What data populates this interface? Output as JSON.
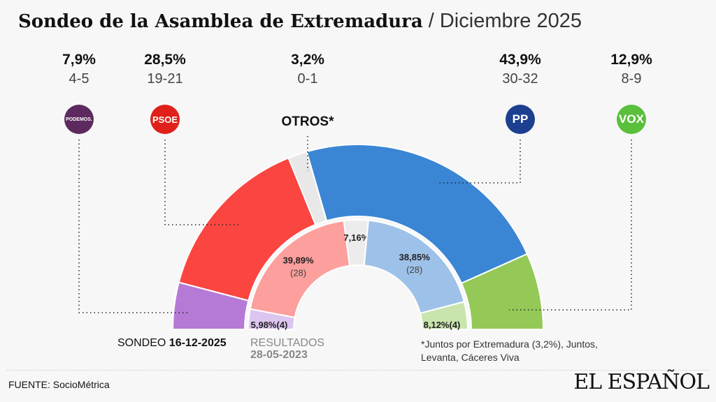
{
  "title": {
    "main": "Sondeo de la Asamblea de Extremadura",
    "separator": " / ",
    "date": "Diciembre 2025"
  },
  "chart_data": {
    "type": "pie",
    "subtype": "semicircle-donut",
    "series": [
      {
        "name": "SONDEO 16-12-2025",
        "ring": "outer",
        "slices": [
          {
            "party": "PODEMOS",
            "value": 7.9,
            "seats": "4-5",
            "color": "#b57ad6"
          },
          {
            "party": "PSOE",
            "value": 28.5,
            "seats": "19-21",
            "color": "#fb4541"
          },
          {
            "party": "OTROS*",
            "value": 3.2,
            "seats": "0-1",
            "color": "#e8e8e8"
          },
          {
            "party": "PP",
            "value": 43.9,
            "seats": "30-32",
            "color": "#3a86d4"
          },
          {
            "party": "VOX",
            "value": 12.9,
            "seats": "8-9",
            "color": "#94c857"
          }
        ]
      },
      {
        "name": "RESULTADOS 28-05-2023",
        "ring": "inner",
        "slices": [
          {
            "party": "PODEMOS",
            "value": 5.98,
            "label": "5,98%",
            "seats": "(4)",
            "color": "#dcc5ef"
          },
          {
            "party": "PSOE",
            "value": 39.89,
            "label": "39,89%",
            "seats": "(28)",
            "color": "#fd9f9c"
          },
          {
            "party": "OTROS*",
            "value": 7.16,
            "label": "7,16%",
            "seats": "",
            "color": "#ececec"
          },
          {
            "party": "PP",
            "value": 38.85,
            "label": "38,85%",
            "seats": "(28)",
            "color": "#9dc1e8"
          },
          {
            "party": "VOX",
            "value": 8.12,
            "label": "8,12%",
            "seats": "(4)",
            "color": "#c9e4ad"
          }
        ]
      }
    ],
    "header_labels": [
      {
        "pct": "7,9%",
        "seats": "4-5",
        "logo": "PODEMOS.",
        "color": "#5c2a5e"
      },
      {
        "pct": "28,5%",
        "seats": "19-21",
        "logo": "PSOE",
        "color": "#e0201a"
      },
      {
        "pct": "3,2%",
        "seats": "0-1",
        "logo": "OTROS*",
        "color": ""
      },
      {
        "pct": "43,9%",
        "seats": "30-32",
        "logo": "PP",
        "color": "#1d3f8f"
      },
      {
        "pct": "12,9%",
        "seats": "8-9",
        "logo": "VOX",
        "color": "#5abf3a"
      }
    ]
  },
  "legend": {
    "sondeo_prefix": "SONDEO ",
    "sondeo_date": "16-12-2025",
    "resultados": "RESULTADOS",
    "resultados_date": "28-05-2023"
  },
  "note": "*Juntos por Extremadura (3,2%), Juntos, Levanta, Cáceres Viva",
  "source": "FUENTE: SocioMétrica",
  "brand": "EL ESPAÑOL"
}
